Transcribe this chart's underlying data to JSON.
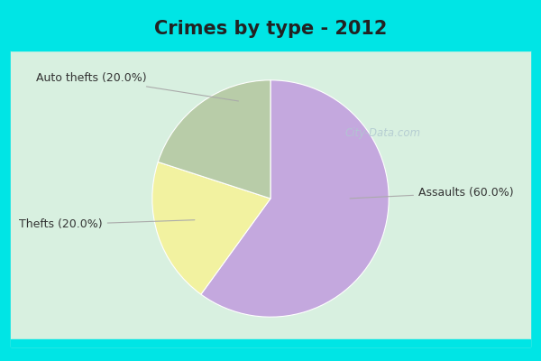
{
  "title": "Crimes by type - 2012",
  "slices": [
    {
      "label": "Assaults",
      "pct": 60.0,
      "color": "#c4a8de"
    },
    {
      "label": "Auto thefts",
      "pct": 20.0,
      "color": "#f2f2a0"
    },
    {
      "label": "Thefts",
      "pct": 20.0,
      "color": "#b8cca8"
    }
  ],
  "border_color": "#00e5e5",
  "bg_color_main": "#d8f0e0",
  "bg_center_color": "#f0faf5",
  "title_fontsize": 15,
  "label_fontsize": 9,
  "watermark": "City-Data.com",
  "startangle": 90,
  "title_color": "#222222",
  "label_color": "#333333",
  "border_width": 12
}
